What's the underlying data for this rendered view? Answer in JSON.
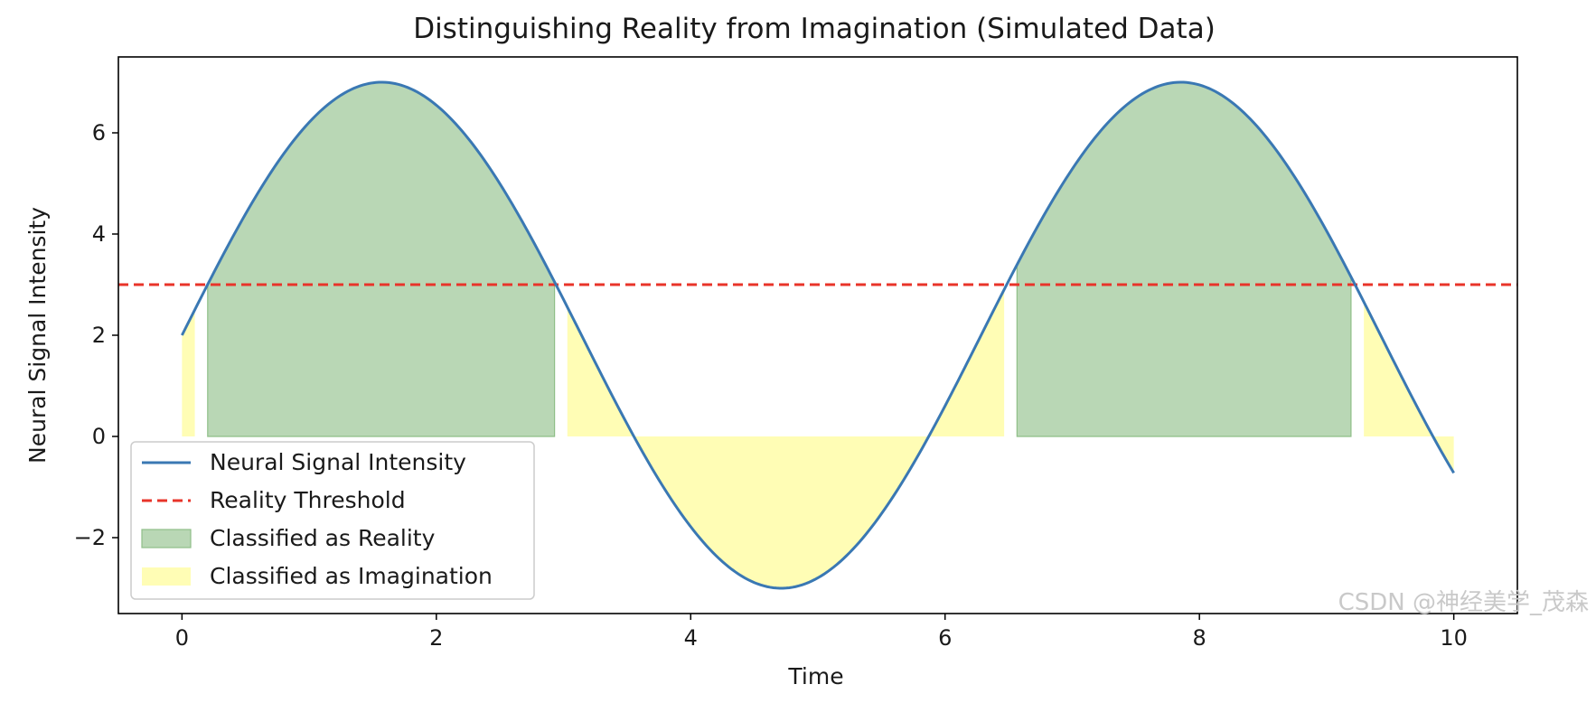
{
  "chart_data": {
    "type": "line",
    "title": "Distinguishing Reality from Imagination (Simulated Data)",
    "xlabel": "Time",
    "ylabel": "Neural Signal Intensity",
    "xlim": [
      -0.5,
      10.5
    ],
    "ylim": [
      -3.5,
      7.5
    ],
    "xticks": [
      0,
      2,
      4,
      6,
      8,
      10
    ],
    "xtick_labels": [
      "0",
      "2",
      "4",
      "6",
      "8",
      "10"
    ],
    "yticks": [
      -2,
      0,
      2,
      4,
      6
    ],
    "ytick_labels": [
      "−2",
      "0",
      "2",
      "4",
      "6"
    ],
    "grid": false,
    "legend_placement": "lower-left",
    "threshold": 3,
    "signal": {
      "name": "Neural Signal Intensity",
      "formula": "2 + 5*sin(x)",
      "x_range": [
        0,
        10
      ],
      "color": "#3a78b3"
    },
    "series": [
      {
        "name": "Neural Signal Intensity",
        "style": "solid line",
        "color": "#3a78b3"
      },
      {
        "name": "Reality Threshold",
        "style": "dashed line",
        "color": "#e8342a",
        "value": 3
      },
      {
        "name": "Classified as Reality",
        "style": "filled area",
        "color": "#b9d7b5",
        "edge": "#8fbf88"
      },
      {
        "name": "Classified as Imagination",
        "style": "filled area",
        "color": "#fffdb5"
      }
    ]
  },
  "watermark": "CSDN @神经美学_茂森"
}
